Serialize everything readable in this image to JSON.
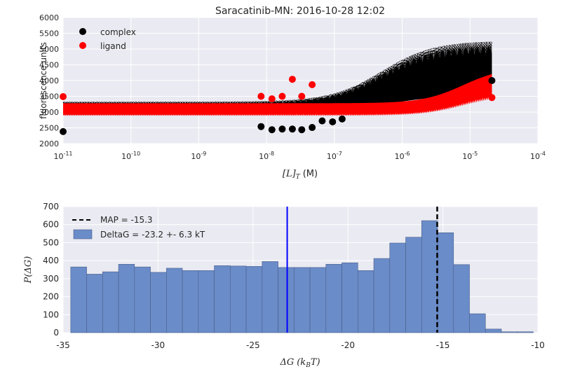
{
  "chart_data": [
    {
      "type": "scatter",
      "title": "Saracatinib-MN: 2016-10-28 12:02",
      "xlabel_math": "[L]",
      "xlabel_sub": "T",
      "xlabel_unit": "(M)",
      "ylabel": "fluorescence units",
      "xscale": "log",
      "xlim": [
        1e-11,
        0.0001
      ],
      "ylim": [
        2000,
        6000
      ],
      "xtick_exponents": [
        "-11",
        "-10",
        "-9",
        "-8",
        "-7",
        "-6",
        "-5",
        "-4"
      ],
      "xtick_base": "10",
      "yticks": [
        "2000",
        "2500",
        "3000",
        "3500",
        "4000",
        "4500",
        "5000",
        "5500",
        "6000"
      ],
      "legend": "top-left",
      "grid": true,
      "series": [
        {
          "name": "complex",
          "color": "#000000",
          "x": [
            1e-11,
            8.3e-09,
            1.2e-08,
            1.7e-08,
            2.4e-08,
            3.3e-08,
            4.7e-08,
            6.6e-08,
            9.4e-08,
            1.3e-07,
            2.1e-05
          ],
          "y": [
            2380,
            2540,
            2440,
            2460,
            2460,
            2440,
            2510,
            2720,
            2690,
            2780,
            4000
          ]
        },
        {
          "name": "ligand",
          "color": "#ff0000",
          "x": [
            1e-11,
            8.3e-09,
            1.2e-08,
            1.7e-08,
            2.4e-08,
            3.3e-08,
            4.7e-08,
            2.1e-05
          ],
          "y": [
            3490,
            3500,
            3420,
            3500,
            4040,
            3500,
            3870,
            3460
          ]
        }
      ],
      "model_band_color_complex": "#000000",
      "model_band_color_ligand": "#ff0000"
    },
    {
      "type": "bar",
      "subtype": "histogram",
      "xlabel_math": "ΔG",
      "xlabel_sub_paren": "k",
      "xlabel_sub": "B",
      "xlabel_tail": "T",
      "ylabel_math": "P(ΔG)",
      "xlim": [
        -35,
        -10
      ],
      "ylim": [
        0,
        700
      ],
      "xticks": [
        "-35",
        "-30",
        "-25",
        "-20",
        "-15",
        "-10"
      ],
      "yticks": [
        "0",
        "100",
        "200",
        "300",
        "400",
        "500",
        "600",
        "700"
      ],
      "legend": "top-left",
      "grid": true,
      "bin_start": -34.6,
      "bin_width": 0.84,
      "counts": [
        365,
        325,
        338,
        380,
        365,
        335,
        358,
        345,
        345,
        372,
        370,
        368,
        395,
        362,
        362,
        362,
        380,
        388,
        345,
        412,
        498,
        530,
        622,
        555,
        378,
        105,
        20,
        5,
        5
      ],
      "bar_color": "#6a8cc8",
      "map_value": -15.3,
      "map_label": "MAP = -15.3",
      "mean_value": -23.2,
      "mean_color": "#0000ff",
      "hist_label": "DeltaG = -23.2 +- 6.3 kT"
    }
  ]
}
